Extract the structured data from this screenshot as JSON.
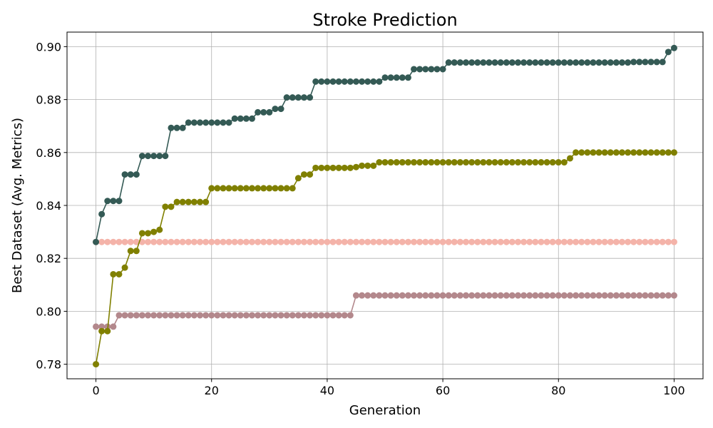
{
  "chart_data": {
    "type": "line",
    "title": "Stroke Prediction",
    "xlabel": "Generation",
    "ylabel": "Best Dataset (Avg. Metrics)",
    "xlim": [
      -5,
      105
    ],
    "ylim": [
      0.7745,
      0.9055
    ],
    "xticks": [
      0,
      20,
      40,
      60,
      80,
      100
    ],
    "yticks": [
      0.78,
      0.8,
      0.82,
      0.84,
      0.86,
      0.88,
      0.9
    ],
    "ytick_labels": [
      "0.78",
      "0.80",
      "0.82",
      "0.84",
      "0.86",
      "0.88",
      "0.90"
    ],
    "grid": true,
    "series": [
      {
        "color": "#b3888c",
        "segments": [
          [
            0,
            0.7942
          ],
          [
            4,
            0.7985
          ],
          [
            45,
            0.806
          ],
          [
            100,
            0.806
          ]
        ]
      },
      {
        "color": "#f4b3a9",
        "segments": [
          [
            0,
            0.8262
          ],
          [
            100,
            0.8262
          ]
        ]
      },
      {
        "color": "#808000",
        "segments": [
          [
            0,
            0.78
          ],
          [
            1,
            0.7925
          ],
          [
            3,
            0.814
          ],
          [
            5,
            0.8165
          ],
          [
            6,
            0.8228
          ],
          [
            8,
            0.8295
          ],
          [
            10,
            0.83
          ],
          [
            11,
            0.8308
          ],
          [
            12,
            0.8395
          ],
          [
            14,
            0.8413
          ],
          [
            20,
            0.8465
          ],
          [
            35,
            0.8503
          ],
          [
            36,
            0.8517
          ],
          [
            38,
            0.8542
          ],
          [
            45,
            0.8545
          ],
          [
            46,
            0.855
          ],
          [
            49,
            0.8563
          ],
          [
            82,
            0.8578
          ],
          [
            83,
            0.86
          ],
          [
            100,
            0.86
          ]
        ]
      },
      {
        "color": "#345a55",
        "segments": [
          [
            0,
            0.8262
          ],
          [
            1,
            0.8367
          ],
          [
            2,
            0.8417
          ],
          [
            5,
            0.8517
          ],
          [
            8,
            0.8587
          ],
          [
            13,
            0.8693
          ],
          [
            16,
            0.8713
          ],
          [
            24,
            0.8728
          ],
          [
            28,
            0.8752
          ],
          [
            31,
            0.8765
          ],
          [
            33,
            0.8808
          ],
          [
            38,
            0.8868
          ],
          [
            50,
            0.8883
          ],
          [
            55,
            0.8915
          ],
          [
            61,
            0.894
          ],
          [
            93,
            0.8942
          ],
          [
            99,
            0.898
          ],
          [
            100,
            0.8995
          ]
        ]
      }
    ]
  }
}
